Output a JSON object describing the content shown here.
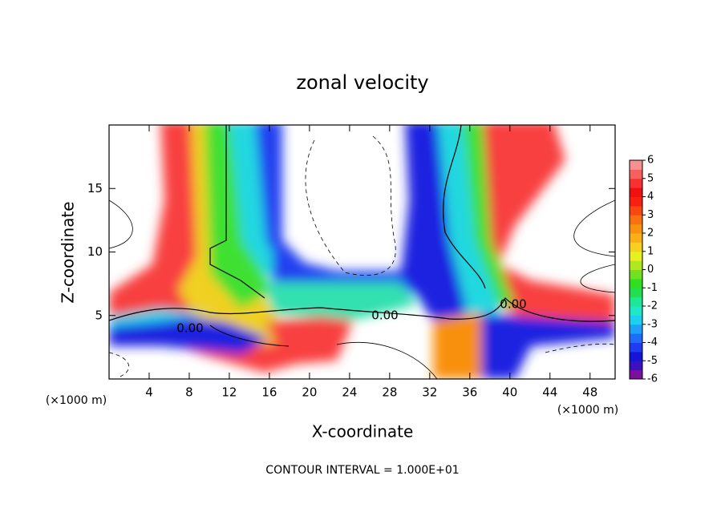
{
  "chart_data": {
    "type": "contour",
    "title": "zonal velocity",
    "xlabel": "X-coordinate",
    "ylabel": "Z-coordinate",
    "x_unit": "(×1000 m)",
    "y_unit": "(×1000 m)",
    "xlim": [
      0,
      50.5
    ],
    "ylim": [
      0,
      20
    ],
    "xticks": [
      4,
      8,
      12,
      16,
      20,
      24,
      28,
      32,
      36,
      40,
      44,
      48
    ],
    "yticks": [
      5,
      10,
      15
    ],
    "contour_labels": [
      "0.00",
      "0.00",
      "0.00"
    ],
    "footer": "CONTOUR INTERVAL = 1.000E+01",
    "colorbar": {
      "lim": [
        -6,
        6
      ],
      "ticks": [
        6,
        5,
        4,
        3,
        2,
        1,
        0,
        -1,
        -2,
        -3,
        -4,
        -5,
        -6
      ],
      "colors": [
        "#7a0fa0",
        "#3a10c0",
        "#1515d8",
        "#1f3cf0",
        "#1f6cf8",
        "#1ea0f8",
        "#1ed0f0",
        "#1ee8c8",
        "#1ee896",
        "#20e050",
        "#30e020",
        "#70e020",
        "#b0e820",
        "#e8f020",
        "#f8d020",
        "#f8b018",
        "#f89010",
        "#f87010",
        "#f84810",
        "#f82010",
        "#f01010",
        "#f83030",
        "#f86060",
        "#f89090"
      ]
    }
  }
}
